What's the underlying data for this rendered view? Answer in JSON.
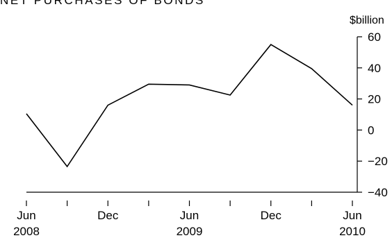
{
  "chart_data": {
    "type": "line",
    "title": "NET PURCHASES OF BONDS",
    "y_unit": "$billion",
    "ylim": [
      -40,
      60
    ],
    "y_ticks": [
      60,
      40,
      20,
      0,
      -20,
      -40
    ],
    "y_tick_labels": [
      "60",
      "40",
      "20",
      "0",
      "−20",
      "−40"
    ],
    "x": [
      "Jun 2008",
      "Sep 2008",
      "Dec 2008",
      "Mar 2009",
      "Jun 2009",
      "Sep 2009",
      "Dec 2009",
      "Mar 2010",
      "Jun 2010"
    ],
    "x_tick_labels": [
      {
        "month": "Jun",
        "year": "2008"
      },
      {
        "month": "",
        "year": ""
      },
      {
        "month": "Dec",
        "year": ""
      },
      {
        "month": "",
        "year": ""
      },
      {
        "month": "Jun",
        "year": "2009"
      },
      {
        "month": "",
        "year": ""
      },
      {
        "month": "Dec",
        "year": ""
      },
      {
        "month": "",
        "year": ""
      },
      {
        "month": "Jun",
        "year": "2010"
      }
    ],
    "series": [
      {
        "values": [
          10.5,
          -23.5,
          16,
          29.5,
          29,
          22.5,
          55,
          39.5,
          16
        ]
      }
    ],
    "grid": false,
    "legend": "none",
    "line_color": "#000000"
  }
}
